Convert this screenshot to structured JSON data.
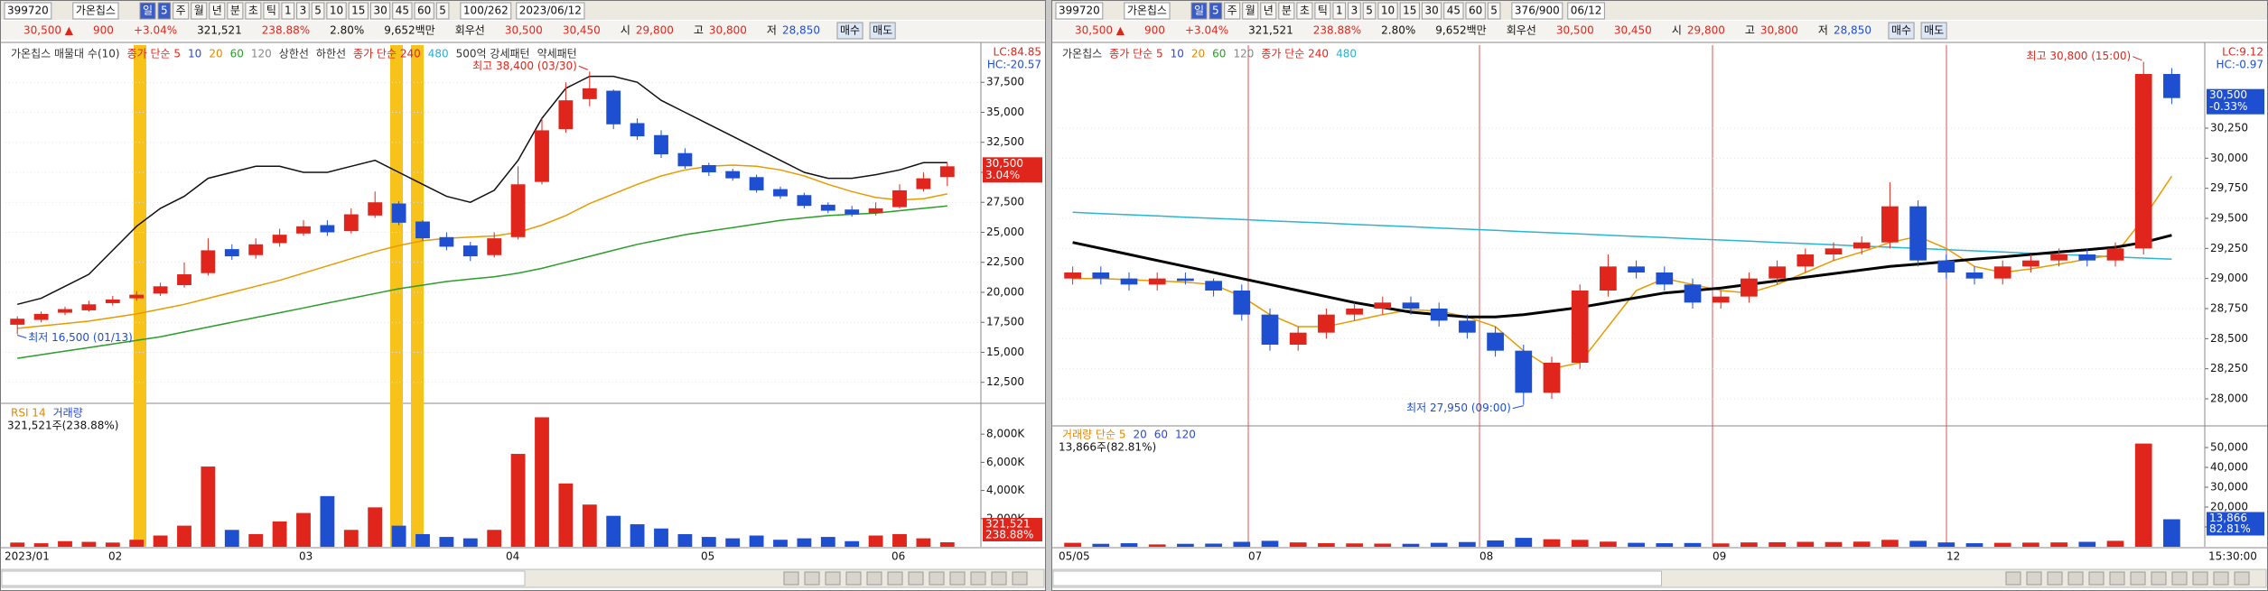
{
  "left": {
    "toolbar": {
      "code": "399720",
      "name": "가온칩스",
      "buttons": [
        "일",
        "5",
        "주",
        "월",
        "년",
        "분",
        "초",
        "틱",
        "1",
        "3",
        "5",
        "10",
        "15",
        "30",
        "45",
        "60",
        "5"
      ],
      "count": "100/262",
      "date": "2023/06/12"
    },
    "quote": {
      "price": "30,500 ▲",
      "change": "900",
      "rate": "+3.04%",
      "volume": "321,521",
      "volume_rate": "238.88%",
      "turnover": "2.80%",
      "amount": "9,652백만",
      "preferred": "회우선",
      "ask": "30,500",
      "bid": "30,450",
      "open_label": "시",
      "open": "29,800",
      "high_label": "고",
      "high": "30,800",
      "low_label": "저",
      "low": "28,850",
      "buy": "매수",
      "sell": "매도"
    },
    "chart": {
      "type": "candlestick",
      "legend": [
        "가온칩스 매물대 수(10)",
        "종가 단순 5",
        "10",
        "20",
        "60",
        "120",
        "상한선",
        "하한선",
        "종가 단순 240",
        "480",
        "500억 강세패턴",
        "약세패턴"
      ],
      "lc": "LC:84.85",
      "hc": "HC:-20.57",
      "ylim": [
        10900,
        40600
      ],
      "yticks": [
        {
          "value": 37500,
          "label": "37,500"
        },
        {
          "value": 35000,
          "label": "35,000"
        },
        {
          "value": 32500,
          "label": "32,500"
        },
        {
          "value": 30000,
          "label": "30,000"
        },
        {
          "value": 27500,
          "label": "27,500"
        },
        {
          "value": 25000,
          "label": "25,000"
        },
        {
          "value": 22500,
          "label": "22,500"
        },
        {
          "value": 20000,
          "label": "20,000"
        },
        {
          "value": 17500,
          "label": "17,500"
        },
        {
          "value": 15000,
          "label": "15,000"
        },
        {
          "value": 12500,
          "label": "12,500"
        }
      ],
      "price_box": [
        "30,500",
        "3.04%"
      ],
      "high_note": "최고 38,400 (03/30)",
      "low_note": "최저 16,500 (01/13)",
      "open": [
        17300,
        17700,
        18300,
        18500,
        19100,
        19500,
        19900,
        20600,
        21600,
        23600,
        23100,
        24100,
        24900,
        25600,
        25100,
        26400,
        27400,
        25900,
        24600,
        23900,
        23100,
        24600,
        29200,
        33600,
        36100,
        36800,
        34100,
        33100,
        31600,
        30600,
        30100,
        29600,
        28600,
        28100,
        27300,
        26900,
        26600,
        27100,
        28600,
        29600
      ],
      "high": [
        18000,
        18400,
        18800,
        19300,
        19700,
        20100,
        20800,
        22500,
        24500,
        24000,
        24500,
        25300,
        26000,
        26000,
        27000,
        28400,
        27600,
        26000,
        25000,
        24200,
        25000,
        30500,
        34500,
        37500,
        38400,
        36900,
        34500,
        33500,
        32000,
        30800,
        30300,
        29800,
        28800,
        28300,
        27500,
        27200,
        27500,
        29000,
        30000,
        30800
      ],
      "low": [
        16500,
        17500,
        18100,
        18400,
        18900,
        19300,
        19700,
        20400,
        21400,
        22700,
        22800,
        23800,
        24700,
        24700,
        24900,
        26200,
        25600,
        24300,
        23500,
        22600,
        22900,
        24400,
        29000,
        33300,
        35500,
        33600,
        32700,
        31200,
        30300,
        29700,
        29300,
        28300,
        27800,
        27000,
        26600,
        26300,
        26400,
        27000,
        28400,
        28850
      ],
      "close": [
        17800,
        18200,
        18600,
        19000,
        19400,
        19800,
        20500,
        21500,
        23500,
        23000,
        24000,
        24800,
        25500,
        25000,
        26500,
        27500,
        25800,
        24500,
        23800,
        23000,
        24500,
        29000,
        33500,
        36000,
        37000,
        34000,
        33000,
        31500,
        30500,
        30000,
        29500,
        28500,
        28000,
        27200,
        26800,
        26500,
        27000,
        28500,
        29500,
        30500
      ],
      "lines": [
        {
          "color": "#111111",
          "values": [
            19000,
            19500,
            20500,
            21500,
            23500,
            25500,
            27000,
            28000,
            29500,
            30000,
            30500,
            30500,
            30000,
            30000,
            30500,
            31000,
            30000,
            29000,
            28000,
            27500,
            28500,
            31000,
            34500,
            37000,
            38000,
            38000,
            37500,
            36000,
            35000,
            34000,
            33000,
            32000,
            31000,
            30000,
            29500,
            29500,
            29800,
            30200,
            30800,
            30800
          ]
        },
        {
          "color": "#e89b00",
          "values": [
            17000,
            17200,
            17400,
            17600,
            17900,
            18200,
            18600,
            19000,
            19500,
            20000,
            20500,
            21000,
            21600,
            22200,
            22800,
            23400,
            23900,
            24300,
            24500,
            24600,
            24700,
            25000,
            25600,
            26400,
            27400,
            28200,
            29000,
            29700,
            30200,
            30500,
            30600,
            30500,
            30200,
            29700,
            29000,
            28400,
            27900,
            27700,
            27800,
            28200
          ]
        },
        {
          "color": "#2a9d2a",
          "values": [
            14500,
            14800,
            15100,
            15400,
            15700,
            16000,
            16300,
            16700,
            17100,
            17500,
            17900,
            18300,
            18700,
            19100,
            19500,
            19900,
            20300,
            20600,
            20900,
            21100,
            21300,
            21600,
            22000,
            22500,
            23000,
            23500,
            24000,
            24400,
            24800,
            25100,
            25400,
            25700,
            26000,
            26200,
            26400,
            26500,
            26600,
            26800,
            27000,
            27200
          ]
        }
      ],
      "x_labels": [
        "2023/01",
        "02",
        "03",
        "04",
        "05",
        "06"
      ]
    },
    "volume": {
      "legend": [
        "RSI 14",
        "거래량"
      ],
      "info": "321,521주(238.88%)",
      "ylim": [
        0,
        10000
      ],
      "yticks": [
        {
          "value": 8000,
          "label": "8,000K"
        },
        {
          "value": 6000,
          "label": "6,000K"
        },
        {
          "value": 4000,
          "label": "4,000K"
        },
        {
          "value": 2000,
          "label": "2,000K"
        }
      ],
      "box": [
        "321,521",
        "238.88%"
      ],
      "values": [
        300,
        250,
        400,
        350,
        300,
        500,
        800,
        1500,
        5700,
        1200,
        900,
        1800,
        2400,
        3600,
        1200,
        2800,
        1500,
        900,
        700,
        600,
        1200,
        6600,
        9200,
        4500,
        3000,
        2200,
        1600,
        1300,
        900,
        700,
        600,
        800,
        500,
        600,
        700,
        400,
        800,
        900,
        600,
        322
      ]
    }
  },
  "right": {
    "toolbar": {
      "code": "399720",
      "name": "가온칩스",
      "buttons": [
        "일",
        "5",
        "주",
        "월",
        "년",
        "분",
        "초",
        "틱",
        "1",
        "3",
        "5",
        "10",
        "15",
        "30",
        "45",
        "60",
        "5"
      ],
      "count": "376/900",
      "date": "06/12"
    },
    "quote": {
      "price": "30,500 ▲",
      "change": "900",
      "rate": "+3.04%",
      "volume": "321,521",
      "volume_rate": "238.88%",
      "turnover": "2.80%",
      "amount": "9,652백만",
      "preferred": "회우선",
      "ask": "30,500",
      "bid": "30,450",
      "open_label": "시",
      "open": "29,800",
      "high_label": "고",
      "high": "30,800",
      "low_label": "저",
      "low": "28,850",
      "buy": "매수",
      "sell": "매도"
    },
    "chart": {
      "type": "candlestick",
      "legend": [
        "가온칩스",
        "종가 단순 5",
        "10",
        "20",
        "60",
        "120",
        "종가 단순 240",
        "480"
      ],
      "lc": "LC:9.12",
      "hc": "HC:-0.97",
      "ylim": [
        27790,
        30940
      ],
      "yticks": [
        {
          "value": 30250,
          "label": "30,250"
        },
        {
          "value": 30000,
          "label": "30,000"
        },
        {
          "value": 29750,
          "label": "29,750"
        },
        {
          "value": 29500,
          "label": "29,500"
        },
        {
          "value": 29250,
          "label": "29,250"
        },
        {
          "value": 29000,
          "label": "29,000"
        },
        {
          "value": 28750,
          "label": "28,750"
        },
        {
          "value": 28500,
          "label": "28,500"
        },
        {
          "value": 28250,
          "label": "28,250"
        },
        {
          "value": 28000,
          "label": "28,000"
        }
      ],
      "price_box": [
        "30,500",
        "-0.33%"
      ],
      "high_note": "최고 30,800 (15:00)",
      "low_note": "최저 27,950 (09:00)",
      "open": [
        29000,
        29050,
        29000,
        28950,
        29000,
        28980,
        28900,
        28700,
        28450,
        28550,
        28700,
        28750,
        28800,
        28750,
        28650,
        28550,
        28400,
        28050,
        28300,
        28900,
        29100,
        29050,
        28950,
        28800,
        28850,
        29000,
        29100,
        29200,
        29250,
        29300,
        29600,
        29150,
        29050,
        29000,
        29100,
        29150,
        29200,
        29150,
        29250,
        30700
      ],
      "high": [
        29100,
        29100,
        29050,
        29050,
        29050,
        29000,
        28950,
        28750,
        28600,
        28750,
        28800,
        28850,
        28850,
        28800,
        28700,
        28600,
        28450,
        28350,
        28950,
        29200,
        29150,
        29100,
        29000,
        28900,
        29050,
        29150,
        29250,
        29300,
        29350,
        29800,
        29650,
        29200,
        29100,
        29150,
        29200,
        29250,
        29250,
        29300,
        30800,
        30750
      ],
      "low": [
        28950,
        28950,
        28900,
        28900,
        28950,
        28850,
        28650,
        28400,
        28400,
        28500,
        28650,
        28700,
        28700,
        28600,
        28500,
        28350,
        27950,
        28000,
        28250,
        28850,
        29000,
        28900,
        28750,
        28750,
        28800,
        28950,
        29050,
        29150,
        29200,
        29250,
        29100,
        29000,
        28950,
        28950,
        29050,
        29100,
        29100,
        29100,
        29200,
        30450
      ],
      "close": [
        29050,
        29000,
        28950,
        29000,
        28980,
        28900,
        28700,
        28450,
        28550,
        28700,
        28750,
        28800,
        28750,
        28650,
        28550,
        28400,
        28050,
        28300,
        28900,
        29100,
        29050,
        28950,
        28800,
        28850,
        29000,
        29100,
        29200,
        29250,
        29300,
        29600,
        29150,
        29050,
        29000,
        29100,
        29150,
        29200,
        29150,
        29250,
        30700,
        30500
      ],
      "lines": [
        {
          "color": "#2bb5cf",
          "values": [
            29550,
            29540,
            29530,
            29520,
            29510,
            29500,
            29490,
            29480,
            29470,
            29460,
            29450,
            29440,
            29430,
            29420,
            29410,
            29400,
            29390,
            29380,
            29370,
            29360,
            29350,
            29340,
            29330,
            29320,
            29310,
            29300,
            29290,
            29280,
            29270,
            29260,
            29250,
            29240,
            29230,
            29220,
            29210,
            29200,
            29190,
            29180,
            29170,
            29160
          ]
        },
        {
          "color": "#e89b00",
          "values": [
            29000,
            29000,
            28990,
            28980,
            28970,
            28950,
            28850,
            28700,
            28600,
            28600,
            28650,
            28700,
            28740,
            28730,
            28680,
            28600,
            28400,
            28250,
            28300,
            28600,
            28900,
            29000,
            28950,
            28900,
            28880,
            28950,
            29050,
            29150,
            29220,
            29300,
            29350,
            29250,
            29100,
            29050,
            29080,
            29120,
            29160,
            29200,
            29500,
            29850
          ]
        },
        {
          "color": "#000000",
          "values": [
            29300,
            29250,
            29200,
            29150,
            29100,
            29050,
            29000,
            28950,
            28900,
            28850,
            28800,
            28760,
            28720,
            28700,
            28680,
            28680,
            28700,
            28730,
            28760,
            28800,
            28840,
            28880,
            28900,
            28920,
            28950,
            28980,
            29010,
            29040,
            29070,
            29100,
            29120,
            29140,
            29160,
            29180,
            29200,
            29220,
            29240,
            29260,
            29300,
            29360
          ]
        }
      ],
      "x_labels": [
        "05/05",
        "07",
        "08",
        "09",
        "12",
        "15:30:00"
      ]
    },
    "volume": {
      "legend": [
        "거래량 단순 5",
        "20",
        "60",
        "120"
      ],
      "info": "13,866주(82.81%)",
      "ylim": [
        0,
        60000
      ],
      "yticks": [
        {
          "value": 50000,
          "label": "50,000"
        },
        {
          "value": 40000,
          "label": "40,000"
        },
        {
          "value": 30000,
          "label": "30,000"
        },
        {
          "value": 20000,
          "label": "20,000"
        },
        {
          "value": 10000,
          "label": "10,000"
        }
      ],
      "box": [
        "13,866",
        "82.81%"
      ],
      "values": [
        2000,
        1500,
        1800,
        1200,
        1500,
        1600,
        2500,
        3000,
        2200,
        1800,
        1700,
        1600,
        1500,
        2000,
        2400,
        3200,
        4500,
        3800,
        3500,
        2600,
        2000,
        1800,
        1900,
        1700,
        2200,
        2300,
        2500,
        2400,
        2600,
        3500,
        3000,
        2200,
        1800,
        2000,
        2100,
        2200,
        2500,
        3000,
        52000,
        13866
      ]
    }
  }
}
